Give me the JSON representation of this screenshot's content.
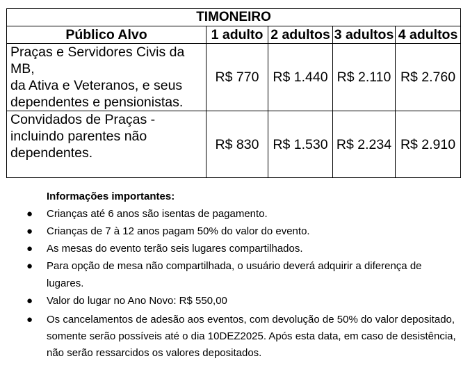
{
  "table": {
    "title": "TIMONEIRO",
    "headers": [
      "Público Alvo",
      "1 adulto",
      "2 adultos",
      "3 adultos",
      "4 adultos"
    ],
    "rows": [
      {
        "audience_lines": [
          "Praças e Servidores Civis da MB,",
          "da Ativa e Veteranos, e seus dependentes e pensionistas."
        ],
        "prices": [
          "R$ 770",
          "R$ 1.440",
          "R$ 2.110",
          "R$ 2.760"
        ]
      },
      {
        "audience_lines": [
          "Convidados de Praças - incluindo parentes não dependentes."
        ],
        "prices": [
          "R$ 830",
          "R$ 1.530",
          "R$ 2.234",
          "R$ 2.910"
        ]
      }
    ]
  },
  "info": {
    "heading": "Informações importantes:",
    "items": [
      "Crianças até 6 anos são isentas de pagamento.",
      "Crianças de 7 à 12 anos pagam 50% do valor do evento.",
      "As mesas do evento terão seis lugares compartilhados.",
      "Para opção de mesa não compartilhada, o usuário deverá adquirir a diferença de lugares.",
      "Valor do lugar no Ano Novo: R$ 550,00",
      "Os cancelamentos de adesão aos eventos, com devolução de 50% do valor depositado, somente serão possíveis até o dia 10DEZ2025. Após esta data, em caso de desistência, não serão ressarcidos os valores depositados."
    ]
  }
}
